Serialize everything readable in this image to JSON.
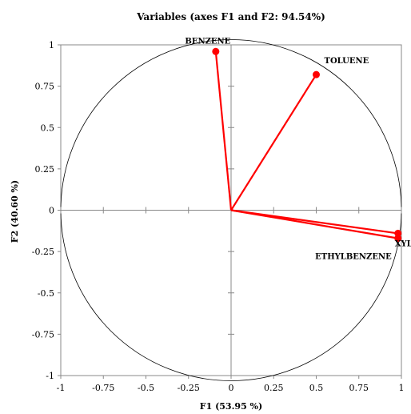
{
  "chart_data": {
    "type": "scatter",
    "title": "Variables (axes F1 and F2: 94.54%)",
    "xlabel": "F1 (53.95 %)",
    "ylabel": "F2 (40.60 %)",
    "xlim": [
      -1,
      1
    ],
    "ylim": [
      -1,
      1
    ],
    "x_ticks": [
      "-1",
      "-0.75",
      "-0.5",
      "-0.25",
      "0",
      "0.25",
      "0.5",
      "0.75",
      "1"
    ],
    "y_ticks": [
      "1",
      "0.75",
      "0.5",
      "0.25",
      "0",
      "-0.25",
      "-0.5",
      "-0.75",
      "-1"
    ],
    "grid": false,
    "correlation_circle": true,
    "vector_color": "#ff0000",
    "variables": [
      {
        "name": "BENZENE",
        "x": -0.09,
        "y": 0.96
      },
      {
        "name": "TOLUENE",
        "x": 0.5,
        "y": 0.82
      },
      {
        "name": "XYLENE",
        "x": 0.98,
        "y": -0.14
      },
      {
        "name": "ETHYLBENZENE",
        "x": 0.98,
        "y": -0.17
      }
    ]
  }
}
